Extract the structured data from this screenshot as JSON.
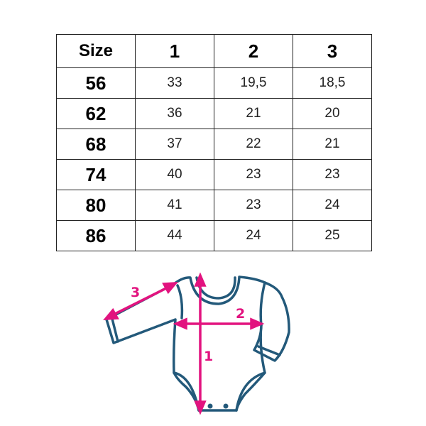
{
  "size_table": {
    "headers": [
      "Size",
      "1",
      "2",
      "3"
    ],
    "rows": [
      [
        "56",
        "33",
        "19,5",
        "18,5"
      ],
      [
        "62",
        "36",
        "21",
        "20"
      ],
      [
        "68",
        "37",
        "22",
        "21"
      ],
      [
        "74",
        "40",
        "23",
        "23"
      ],
      [
        "80",
        "41",
        "23",
        "24"
      ],
      [
        "86",
        "44",
        "24",
        "25"
      ]
    ]
  },
  "diagram": {
    "labels": {
      "length": "1",
      "chest": "2",
      "sleeve": "3"
    },
    "colors": {
      "outline": "#23597a",
      "arrows": "#e2137f"
    }
  }
}
